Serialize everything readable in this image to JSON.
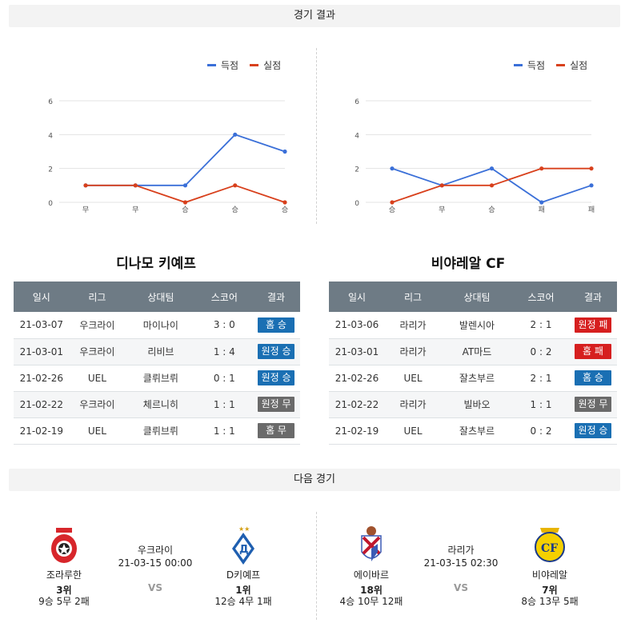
{
  "sections": {
    "results_title": "경기 결과",
    "next_title": "다음 경기"
  },
  "legend": {
    "scored": "득점",
    "conceded": "실점",
    "scored_color": "#3a6fd8",
    "conceded_color": "#d8401c"
  },
  "chart_data": [
    {
      "type": "line",
      "categories": [
        "무",
        "무",
        "승",
        "승",
        "승"
      ],
      "series": [
        {
          "name": "득점",
          "values": [
            1,
            1,
            1,
            4,
            3
          ]
        },
        {
          "name": "실점",
          "values": [
            1,
            1,
            0,
            1,
            0
          ]
        }
      ],
      "ylim": [
        0,
        6
      ],
      "yticks": [
        "0",
        "2",
        "4",
        "6"
      ],
      "grid": true,
      "legend": "top-right"
    },
    {
      "type": "line",
      "categories": [
        "승",
        "무",
        "승",
        "패",
        "패"
      ],
      "series": [
        {
          "name": "득점",
          "values": [
            2,
            1,
            2,
            0,
            1
          ]
        },
        {
          "name": "실점",
          "values": [
            0,
            1,
            1,
            2,
            2
          ]
        }
      ],
      "ylim": [
        0,
        6
      ],
      "yticks": [
        "0",
        "2",
        "4",
        "6"
      ],
      "grid": true,
      "legend": "top-right"
    }
  ],
  "teams": {
    "left": {
      "name": "디나모 키예프",
      "headers": [
        "일시",
        "리그",
        "상대팀",
        "스코어",
        "결과"
      ],
      "rows": [
        {
          "date": "21-03-07",
          "league": "우크라이",
          "opp": "마이나이",
          "score": "3 : 0",
          "result": "홈 승",
          "color": "#1a6fb3"
        },
        {
          "date": "21-03-01",
          "league": "우크라이",
          "opp": "리비브",
          "score": "1 : 4",
          "result": "원정 승",
          "color": "#1a6fb3"
        },
        {
          "date": "21-02-26",
          "league": "UEL",
          "opp": "클뤼브뤼",
          "score": "0 : 1",
          "result": "원정 승",
          "color": "#1a6fb3"
        },
        {
          "date": "21-02-22",
          "league": "우크라이",
          "opp": "체르니히",
          "score": "1 : 1",
          "result": "원정 무",
          "color": "#6a6a6a"
        },
        {
          "date": "21-02-19",
          "league": "UEL",
          "opp": "클뤼브뤼",
          "score": "1 : 1",
          "result": "홈 무",
          "color": "#6a6a6a"
        }
      ]
    },
    "right": {
      "name": "비야레알 CF",
      "headers": [
        "일시",
        "리그",
        "상대팀",
        "스코어",
        "결과"
      ],
      "rows": [
        {
          "date": "21-03-06",
          "league": "라리가",
          "opp": "발렌시아",
          "score": "2 : 1",
          "result": "원정 패",
          "color": "#d61f1f"
        },
        {
          "date": "21-03-01",
          "league": "라리가",
          "opp": "AT마드",
          "score": "0 : 2",
          "result": "홈 패",
          "color": "#d61f1f"
        },
        {
          "date": "21-02-26",
          "league": "UEL",
          "opp": "잘츠부르",
          "score": "2 : 1",
          "result": "홈 승",
          "color": "#1a6fb3"
        },
        {
          "date": "21-02-22",
          "league": "라리가",
          "opp": "빌바오",
          "score": "1 : 1",
          "result": "원정 무",
          "color": "#6a6a6a"
        },
        {
          "date": "21-02-19",
          "league": "UEL",
          "opp": "잘츠부르",
          "score": "0 : 2",
          "result": "원정 승",
          "color": "#1a6fb3"
        }
      ]
    }
  },
  "next": {
    "m1": {
      "home": {
        "name": "조라루한",
        "rank": "3위",
        "record": "9승 5무 2패"
      },
      "away": {
        "name": "D키예프",
        "rank": "1위",
        "record": "12승 4무 1패"
      },
      "league": "우크라이",
      "datetime": "21-03-15 00:00",
      "vs": "VS"
    },
    "m2": {
      "home": {
        "name": "에이바르",
        "rank": "18위",
        "record": "4승 10무 12패"
      },
      "away": {
        "name": "비야레알",
        "rank": "7위",
        "record": "8승 13무 5패"
      },
      "league": "라리가",
      "datetime": "21-03-15 02:30",
      "vs": "VS"
    }
  }
}
